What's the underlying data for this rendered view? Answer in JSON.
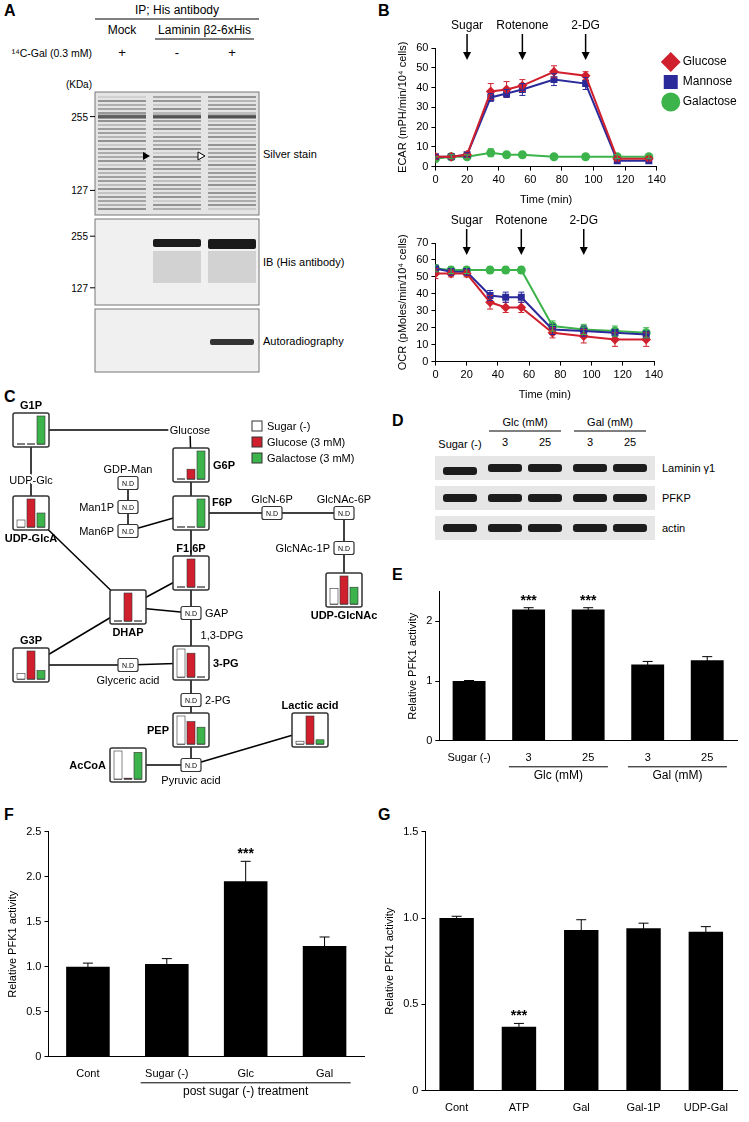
{
  "panel_labels": [
    "A",
    "B",
    "C",
    "D",
    "E",
    "F",
    "G"
  ],
  "gel": {
    "header": "IP; His antibody",
    "groups": [
      {
        "label": "Mock",
        "marks": [
          "+"
        ]
      },
      {
        "label": "Laminin β2-6xHis",
        "marks": [
          "-",
          "+"
        ]
      }
    ],
    "row_label": "¹⁴C-Gal (0.3 mM)",
    "unit": "(KDa)",
    "panels": [
      {
        "name": "Silver stain",
        "markers": [
          255,
          127
        ]
      },
      {
        "name": "IB (His antibody)",
        "markers": [
          255,
          127
        ]
      },
      {
        "name": "Autoradiography",
        "markers": []
      }
    ]
  },
  "chart_data": [
    {
      "type": "line",
      "x_label": "Time (min)",
      "y_label": "ECAR (mPH/min/10⁴ cells)",
      "x": [
        0,
        10,
        20,
        35,
        45,
        55,
        75,
        95,
        115,
        135
      ],
      "xlim": [
        0,
        140
      ],
      "xticks": [
        0,
        20,
        40,
        60,
        80,
        100,
        120,
        140
      ],
      "ylim": [
        0,
        60
      ],
      "yticks": [
        0,
        10,
        20,
        30,
        40,
        50,
        60
      ],
      "grid": false,
      "legend": "right",
      "annotations": [
        {
          "text": "Sugar",
          "x": 20
        },
        {
          "text": "Rotenone",
          "x": 55
        },
        {
          "text": "2-DG",
          "x": 95
        }
      ],
      "series": [
        {
          "name": "Glucose",
          "color": "#d0202e",
          "marker": "diamond",
          "values": [
            5,
            5,
            6,
            38,
            39,
            41,
            48,
            46,
            4,
            4
          ],
          "errors": [
            1,
            1,
            1,
            4,
            4,
            3,
            3,
            2,
            1,
            1
          ]
        },
        {
          "name": "Mannose",
          "color": "#2a2a9a",
          "marker": "square",
          "values": [
            5,
            5,
            6,
            35,
            37,
            39,
            44,
            42,
            3,
            3
          ],
          "errors": [
            1,
            1,
            1,
            2,
            2,
            3,
            3,
            3,
            1,
            1
          ]
        },
        {
          "name": "Galactose",
          "color": "#3cb44b",
          "marker": "circle",
          "values": [
            4,
            5,
            5,
            7,
            6,
            6,
            5,
            5,
            5,
            5
          ],
          "errors": [
            1,
            1,
            1,
            2,
            1,
            1,
            1,
            1,
            1,
            1
          ]
        }
      ]
    },
    {
      "type": "line",
      "x_label": "Time (min)",
      "y_label": "OCR (pMoles/min/10⁴ cells)",
      "x": [
        0,
        10,
        20,
        35,
        45,
        55,
        75,
        95,
        115,
        135
      ],
      "xlim": [
        0,
        140
      ],
      "xticks": [
        0,
        20,
        40,
        60,
        80,
        100,
        120,
        140
      ],
      "ylim": [
        0,
        70
      ],
      "yticks": [
        0,
        10,
        20,
        30,
        40,
        50,
        60,
        70
      ],
      "grid": false,
      "annotations": [
        {
          "text": "Sugar",
          "x": 20
        },
        {
          "text": "Rotenone",
          "x": 55
        },
        {
          "text": "2-DG",
          "x": 95
        }
      ],
      "series": [
        {
          "color": "#d0202e",
          "marker": "diamond",
          "values": [
            52,
            52,
            52,
            35,
            32,
            32,
            17,
            15,
            13,
            13
          ],
          "errors": [
            3,
            2,
            2,
            4,
            3,
            3,
            3,
            4,
            4,
            4
          ]
        },
        {
          "color": "#2a2a9a",
          "marker": "square",
          "values": [
            55,
            53,
            53,
            39,
            38,
            38,
            19,
            18,
            17,
            16
          ],
          "errors": [
            2,
            2,
            2,
            3,
            3,
            3,
            3,
            3,
            2,
            2
          ]
        },
        {
          "color": "#3cb44b",
          "marker": "circle",
          "values": [
            55,
            54,
            54,
            54,
            54,
            54,
            21,
            19,
            18,
            17
          ],
          "errors": [
            2,
            2,
            2,
            2,
            2,
            2,
            3,
            3,
            3,
            3
          ]
        }
      ]
    },
    {
      "type": "bar",
      "y_label": "Relative PFK1 activity",
      "categories": [
        "Sugar (-)",
        "3",
        "25",
        "3",
        "25"
      ],
      "category_groups": [
        {
          "label": "Glc (mM)",
          "categories": [
            1,
            2
          ]
        },
        {
          "label": "Gal (mM)",
          "categories": [
            3,
            4
          ]
        }
      ],
      "values": [
        1,
        2.2,
        2.2,
        1.28,
        1.35
      ],
      "errors": [
        0.01,
        0.03,
        0.03,
        0.05,
        0.06
      ],
      "significance": [
        null,
        "***",
        "***",
        null,
        null
      ],
      "color": "#000000",
      "ylim": [
        0,
        2.5
      ],
      "yticks": [
        0,
        1,
        2
      ],
      "grid": false
    },
    {
      "type": "bar",
      "y_label": "Relative PFK1 activity",
      "categories": [
        "Cont",
        "Sugar (-)",
        "Glc",
        "Gal"
      ],
      "category_groups": [
        {
          "label": "post sugar (-) treatment",
          "categories": [
            1,
            2,
            3
          ]
        }
      ],
      "values": [
        1,
        1.03,
        1.95,
        1.23
      ],
      "errors": [
        0.04,
        0.06,
        0.22,
        0.1
      ],
      "significance": [
        null,
        null,
        "***",
        null
      ],
      "color": "#000000",
      "ylim": [
        0,
        2.5
      ],
      "yticks": [
        0,
        0.5,
        {
          "value": 1,
          "label": "1.0"
        },
        1.5,
        {
          "value": 2,
          "label": "2.0"
        },
        2.5
      ],
      "grid": false
    },
    {
      "type": "bar",
      "y_label": "Relative PFK1 activity",
      "categories": [
        "Cont",
        "ATP",
        "Gal",
        "Gal-1P",
        "UDP-Gal"
      ],
      "values": [
        1,
        0.37,
        0.93,
        0.94,
        0.92
      ],
      "errors": [
        0.01,
        0.02,
        0.06,
        0.03,
        0.03
      ],
      "significance": [
        null,
        "***",
        null,
        null,
        null
      ],
      "color": "#000000",
      "ylim": [
        0,
        1.5
      ],
      "yticks": [
        0,
        0.5,
        {
          "value": 1,
          "label": "1.0"
        },
        1.5
      ],
      "grid": false
    }
  ],
  "pathway": {
    "nd_label": "N.D",
    "legend": [
      {
        "label": "Sugar (-)",
        "color": "#ffffff"
      },
      {
        "label": "Glucose (3 mM)",
        "color": "#d0202e"
      },
      {
        "label": "Galactose (3 mM)",
        "color": "#3cb44b"
      }
    ],
    "nodes": [
      {
        "label": "G1P",
        "kind": "measured",
        "bars": [
          0,
          0,
          1
        ]
      },
      {
        "label": "Glucose",
        "kind": "text"
      },
      {
        "label": "G6P",
        "kind": "measured",
        "bars": [
          0,
          0.35,
          1
        ]
      },
      {
        "label": "UDP-Glc",
        "kind": "text"
      },
      {
        "label": "UDP-GlcA",
        "kind": "measured",
        "bars": [
          0.25,
          1,
          0.5
        ]
      },
      {
        "label": "GDP-Man",
        "kind": "nd"
      },
      {
        "label": "Man1P",
        "kind": "nd"
      },
      {
        "label": "Man6P",
        "kind": "nd"
      },
      {
        "label": "F6P",
        "kind": "measured",
        "bars": [
          0,
          0,
          1
        ]
      },
      {
        "label": "GlcN-6P",
        "kind": "nd"
      },
      {
        "label": "GlcNAc-6P",
        "kind": "nd"
      },
      {
        "label": "GlcNAc-1P",
        "kind": "nd"
      },
      {
        "label": "UDP-GlcNAc",
        "kind": "measured",
        "bars": [
          0.55,
          1,
          0.6
        ]
      },
      {
        "label": "F1,6P",
        "kind": "measured",
        "bars": [
          0,
          1,
          0
        ]
      },
      {
        "label": "DHAP",
        "kind": "measured",
        "bars": [
          0,
          1,
          0
        ]
      },
      {
        "label": "GAP",
        "kind": "nd"
      },
      {
        "label": "1,3-DPG",
        "kind": "text"
      },
      {
        "label": "3-PG",
        "kind": "measured",
        "bars": [
          1,
          0.85,
          0
        ]
      },
      {
        "label": "G3P",
        "kind": "measured",
        "bars": [
          0.2,
          1,
          0.3
        ]
      },
      {
        "label": "Glyceric acid",
        "kind": "nd"
      },
      {
        "label": "2-PG",
        "kind": "nd"
      },
      {
        "label": "PEP",
        "kind": "measured",
        "bars": [
          1,
          0.8,
          0.6
        ]
      },
      {
        "label": "Lactic acid",
        "kind": "measured",
        "bars": [
          0.1,
          1,
          0.15
        ]
      },
      {
        "label": "AcCoA",
        "kind": "measured",
        "bars": [
          1,
          0.03,
          0.95
        ]
      },
      {
        "label": "Pyruvic acid",
        "kind": "nd"
      }
    ]
  },
  "blot": {
    "single": "Sugar (-)",
    "groups": [
      {
        "label": "Glc (mM)",
        "lanes": [
          "3",
          "25"
        ]
      },
      {
        "label": "Gal (mM)",
        "lanes": [
          "3",
          "25"
        ]
      }
    ],
    "rows": [
      "Laminin γ1",
      "PFKP",
      "actin"
    ]
  }
}
